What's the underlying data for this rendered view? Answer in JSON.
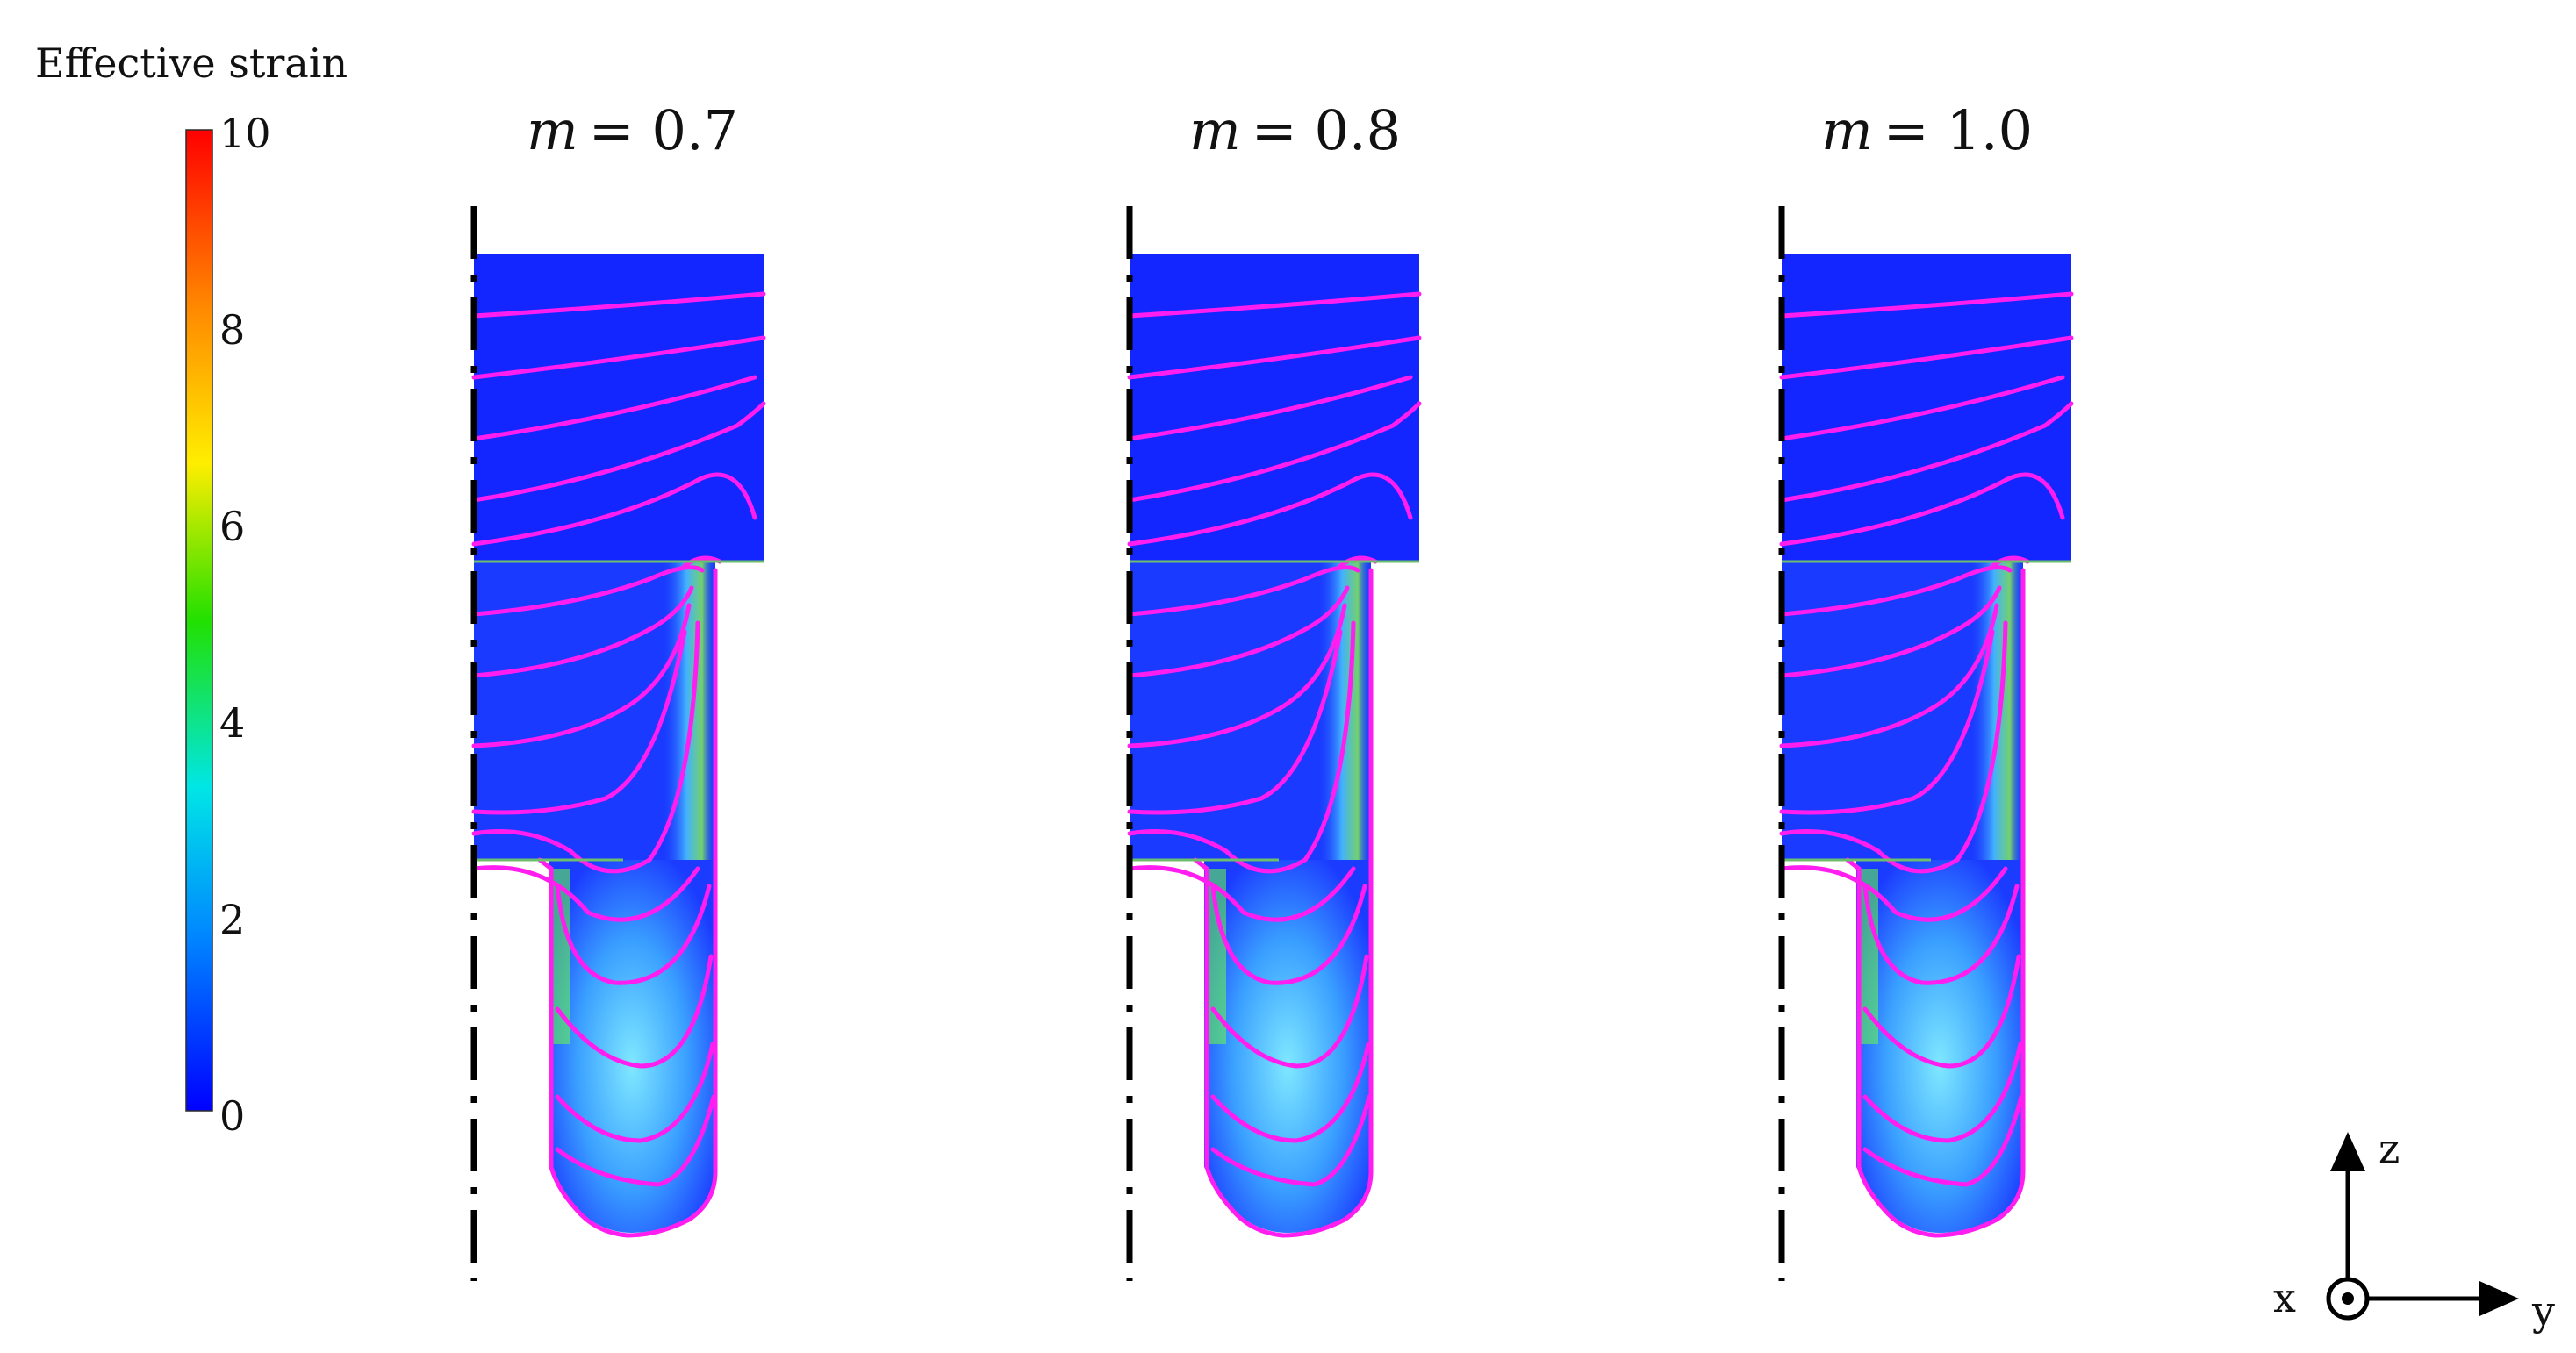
{
  "legend": {
    "title": "Effective strain",
    "ticks": [
      "10",
      "8",
      "6",
      "4",
      "2",
      "0"
    ],
    "colors": [
      "#ff0000",
      "#ff8800",
      "#ffe600",
      "#3fe000",
      "#00e6e6",
      "#0099ff",
      "#0000ff"
    ]
  },
  "panels": [
    {
      "param": "m",
      "value": "= 0.7"
    },
    {
      "param": "m",
      "value": "= 0.8"
    },
    {
      "param": "m",
      "value": "= 1.0"
    }
  ],
  "axes": {
    "z": "z",
    "x": "x",
    "y": "y"
  },
  "contour_color": "#ff1df0",
  "background_field_color": "#1428ff"
}
